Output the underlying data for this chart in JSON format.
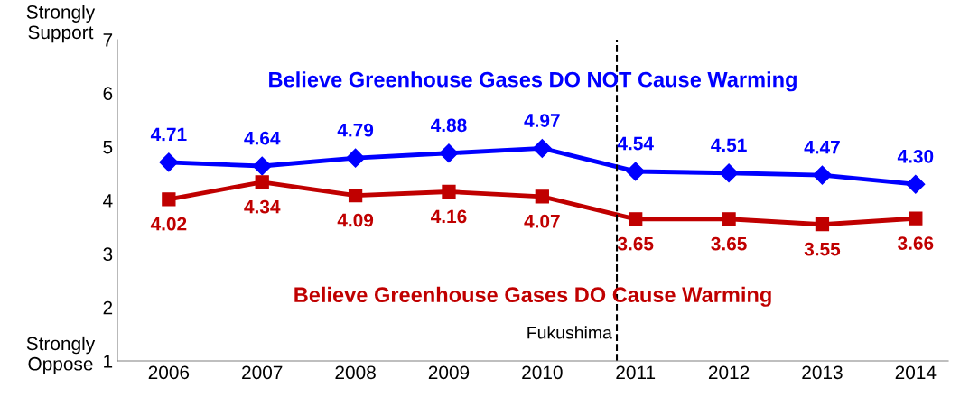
{
  "chart_data": {
    "type": "line",
    "x": [
      2006,
      2007,
      2008,
      2009,
      2010,
      2011,
      2012,
      2013,
      2014
    ],
    "xlim": [
      2005.45,
      2014.35
    ],
    "xticks": [
      2006,
      2007,
      2008,
      2009,
      2010,
      2011,
      2012,
      2013,
      2014
    ],
    "ylim": [
      1,
      7
    ],
    "yticks": [
      1,
      2,
      3,
      4,
      5,
      6,
      7
    ],
    "grid": false,
    "legend": false,
    "line_style": "solid",
    "series": [
      {
        "name": "Believe Greenhouse Gases DO NOT Cause Warming",
        "color": "#0000ff",
        "marker": "diamond",
        "values": [
          4.71,
          4.64,
          4.79,
          4.88,
          4.97,
          4.54,
          4.51,
          4.47,
          4.3
        ],
        "value_labels": [
          "4.71",
          "4.64",
          "4.79",
          "4.88",
          "4.97",
          "4.54",
          "4.51",
          "4.47",
          "4.30"
        ]
      },
      {
        "name": "Believe Greenhouse Gases DO Cause Warming",
        "color": "#c00000",
        "marker": "square",
        "values": [
          4.02,
          4.34,
          4.09,
          4.16,
          4.07,
          3.65,
          3.65,
          3.55,
          3.66
        ],
        "value_labels": [
          "4.02",
          "4.34",
          "4.09",
          "4.16",
          "4.07",
          "3.65",
          "3.65",
          "3.55",
          "3.66"
        ]
      }
    ],
    "ref_lines": [
      {
        "axis": "x",
        "value": 2010.8,
        "label": "Fukushima",
        "color": "#000000",
        "line_style": "dashed"
      }
    ],
    "annotations": [
      "Strongly Support",
      "Strongly Oppose"
    ]
  }
}
